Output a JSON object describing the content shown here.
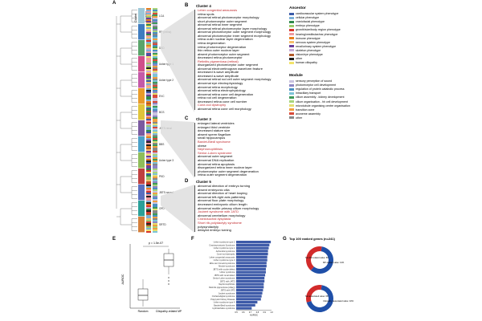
{
  "panel_letters": {
    "a": "A",
    "b": "B",
    "c": "C",
    "d": "D",
    "e": "E",
    "f": "F",
    "g": "G"
  },
  "tree_headers": {
    "cluster": "Cluster",
    "ancestor": "Ancestor",
    "module": "Module"
  },
  "clusters": [
    {
      "label": "LCA",
      "color": "#9ec8d8"
    },
    {
      "label": "RP (retina)",
      "color": "#3f7cbf"
    },
    {
      "label": "DSD",
      "color": "#5aa46a"
    },
    {
      "label": "Usher type 1",
      "color": "#d04f8a"
    },
    {
      "label": "Usher type 2",
      "color": "#c45aa8"
    },
    {
      "label": "EVC",
      "color": "#e89b2a"
    },
    {
      "label": "BCS",
      "color": "#e0c43a"
    },
    {
      "label": "JBTS renal",
      "color": "#7a5aa0"
    },
    {
      "label": "BBS",
      "color": "#4aa0c8"
    },
    {
      "label": "Usher type 3",
      "color": "#8fbd5a"
    },
    {
      "label": "PKD",
      "color": "#bf4040"
    },
    {
      "label": "JBTS neural",
      "color": "#5a6fbf"
    },
    {
      "label": "OFD",
      "color": "#2aa098"
    },
    {
      "label": "SRTD",
      "color": "#d47f3a"
    }
  ],
  "cluster4": {
    "title": "Cluster 4",
    "terms": [
      {
        "t": "Leber congenital amaurosis",
        "red": true
      },
      {
        "t": "retina spots",
        "red": false
      },
      {
        "t": "abnormal retinal photoreceptor morphology",
        "red": false
      },
      {
        "t": "short photoreceptor outer segment",
        "red": false
      },
      {
        "t": "abnormal retinal inner segment",
        "red": false
      },
      {
        "t": "abnormal retinal photoreceptor layer morphology",
        "red": false
      },
      {
        "t": "abnormal photoreceptor outer segment morphology",
        "red": false
      },
      {
        "t": "abnormal photoreceptor inner segment morphology",
        "red": false
      },
      {
        "t": "retina outer nuclear layer degeneration",
        "red": false
      },
      {
        "t": "retina degeneration",
        "red": false
      },
      {
        "t": "retina photoreceptor degeneration",
        "red": false
      },
      {
        "t": "thin retina outer nuclear layer",
        "red": false
      },
      {
        "t": "absent photoreceptor outer segment",
        "red": false
      },
      {
        "t": "decreased retina photoreceptor",
        "red": false
      },
      {
        "t": "Retinitis pigmentosa (retinal)",
        "red": true
      },
      {
        "t": "disorganized photoreceptor outer segment",
        "red": false
      },
      {
        "t": "abnormal electroretinogram waveform feature",
        "red": false
      },
      {
        "t": "decreased b-wave amplitude",
        "red": false
      },
      {
        "t": "decreased a-wave amplitude",
        "red": false
      },
      {
        "t": "abnormal retinal rod cell outer segment morphology",
        "red": false
      },
      {
        "t": "abnormal eye electrophysiology",
        "red": false
      },
      {
        "t": "abnormal retina morphology",
        "red": false
      },
      {
        "t": "abnormal retina electrophysiology",
        "red": false
      },
      {
        "t": "abnormal retina cone cell degeneration",
        "red": false
      },
      {
        "t": "retina rod cell degeneration",
        "red": false
      },
      {
        "t": "decreased retina cone cell number",
        "red": false
      },
      {
        "t": "Cone-rod dystrophy",
        "red": true
      },
      {
        "t": "abnormal retina cone cell morphology",
        "red": false
      }
    ]
  },
  "cluster3": {
    "title": "Cluster 3",
    "terms": [
      {
        "t": "enlarged lateral ventricles",
        "red": false
      },
      {
        "t": "enlarged third ventricle",
        "red": false
      },
      {
        "t": "decreased stature size",
        "red": false
      },
      {
        "t": "absent sperm flagellum",
        "red": false
      },
      {
        "t": "small hippocampus",
        "red": false
      },
      {
        "t": "Bardet-Biedl syndrome",
        "red": true
      },
      {
        "t": "obese",
        "red": false
      },
      {
        "t": "Nephronophthisis",
        "red": true
      },
      {
        "t": "Senior-Loken syndrome",
        "red": true
      },
      {
        "t": "abnormal outer segment",
        "red": false
      },
      {
        "t": "abnormal DNA replication",
        "red": false
      },
      {
        "t": "abnormal retina apoptosis",
        "red": false
      },
      {
        "t": "disorganized retina inner nuclear layer",
        "red": false
      },
      {
        "t": "photoreceptor outer segment degeneration",
        "red": false
      },
      {
        "t": "retina outer segment degeneration",
        "red": false
      }
    ]
  },
  "cluster5": {
    "title": "Cluster 5",
    "terms": [
      {
        "t": "abnormal direction of embryo turning",
        "red": false
      },
      {
        "t": "absent embryonic cilia",
        "red": false
      },
      {
        "t": "abnormal direction of heart looping",
        "red": false
      },
      {
        "t": "abnormal left-right axis patterning",
        "red": false
      },
      {
        "t": "abnormal floor plate morphology",
        "red": false
      },
      {
        "t": "decreased embryonic cilium length",
        "red": false
      },
      {
        "t": "abnormal motile primary cilium morphology",
        "red": false
      },
      {
        "t": "Joubert syndrome with JATD",
        "red": true
      },
      {
        "t": "abnormal cerebellum morphology",
        "red": false
      },
      {
        "t": "Craniosuchal dysplasia",
        "red": true
      },
      {
        "t": "Short rib-polydactyly syndrome",
        "red": true
      },
      {
        "t": "polysyndactyly",
        "red": false
      },
      {
        "t": "delayed embryo turning",
        "red": false
      }
    ]
  },
  "ancestor_legend": {
    "title": "Ancestor",
    "items": [
      {
        "label": "cardiovascular system phenotype",
        "color": "#3a5aa8"
      },
      {
        "label": "cellular phenotype",
        "color": "#7bb0d8"
      },
      {
        "label": "craniofacial phenotype",
        "color": "#2e8a4a"
      },
      {
        "label": "embryo phenotype",
        "color": "#9acb6a"
      },
      {
        "label": "growth/size/body region phenotype",
        "color": "#d8342c"
      },
      {
        "label": "hearing/vestibular/ear phenotype",
        "color": "#f09aa0"
      },
      {
        "label": "immune phenotype",
        "color": "#e87f1e"
      },
      {
        "label": "nervous system phenotype",
        "color": "#f6be6a"
      },
      {
        "label": "renal/urinary system phenotype",
        "color": "#6a3d9a"
      },
      {
        "label": "skeleton phenotype",
        "color": "#c6a8d6"
      },
      {
        "label": "vision/eye phenotype",
        "color": "#b15928"
      },
      {
        "label": "other",
        "color": "#222222"
      },
      {
        "label": "human ciliopathy",
        "color": "#f2e36a"
      }
    ]
  },
  "module_legend": {
    "title": "Module",
    "items": [
      {
        "label": "sensory perception of sound",
        "color": "#c9c3e0"
      },
      {
        "label": "photoreceptor cell development",
        "color": "#8e86c4"
      },
      {
        "label": "regulation of protein catabolic process",
        "color": "#4a90c2"
      },
      {
        "label": "intraciliary transport",
        "color": "#7dc4d8"
      },
      {
        "label": "cilium assembly - kidney development",
        "color": "#3e9a58"
      },
      {
        "label": "cilium organisation - hh cell development",
        "color": "#a8d57a"
      },
      {
        "label": "microtubule organising centre organisation",
        "color": "#e4df70"
      },
      {
        "label": "transition zone",
        "color": "#f0a040"
      },
      {
        "label": "axoneme assembly",
        "color": "#d84a3a"
      },
      {
        "label": "other",
        "color": "#888888"
      }
    ]
  },
  "panel_e": {
    "pvalue": "p = 1.5e-07",
    "ylabel": "AUROC",
    "categories": [
      "Random",
      "Ciliopathy-related MP"
    ]
  },
  "panel_f": {
    "xlabel": "AUROC",
    "ticks": [
      "0.5",
      "0.6",
      "0.7",
      "0.8",
      "0.9",
      "1.0"
    ],
    "chart_data": {
      "type": "bar",
      "categories": [
        "Usher syndrome type 2",
        "Craniosynostosis Syndrome",
        "Usher syndrome type 1",
        "Achondral syndrome",
        "Cone-rod dystrophy",
        "Leber congenital amaurosis",
        "Usher syndrome type 3",
        "Ellis-van Creveld syndrome",
        "Meckel syndrome",
        "JBTS with ocular defect",
        "Usher syndrome",
        "JBTS with renal defect",
        "Senior-Loken syndrome",
        "JBTS with JATD",
        "Nephronophthisis",
        "Retinitis pigmentosa (ciliary)",
        "JBTS with OFD",
        "Joubert syndrome",
        "Orofaciodigital syndrome",
        "Polycystic Kidney Disease",
        "Usher syndrome type 4",
        "Bardet-Biedl syndrome",
        "Hydrolethalus syndrome"
      ],
      "values": [
        0.99,
        0.97,
        0.96,
        0.95,
        0.95,
        0.94,
        0.94,
        0.93,
        0.93,
        0.92,
        0.92,
        0.91,
        0.9,
        0.9,
        0.89,
        0.89,
        0.88,
        0.87,
        0.86,
        0.85,
        0.8,
        0.77,
        0.72
      ],
      "xlim": [
        0.5,
        1.0
      ]
    }
  },
  "panel_g": {
    "title": "Top 100 ranked genes (n=241)",
    "chart_data": [
      {
        "type": "pie",
        "categories": [
          "Not MP-related",
          "MP-related"
        ],
        "values": [
          59,
          41
        ],
        "labels": [
          "Not MP-related value: 59",
          "MP-related value: 41%"
        ]
      },
      {
        "type": "pie",
        "categories": [
          "Not associated",
          "Ciliopathy associated"
        ],
        "values": [
          68,
          32
        ],
        "labels": [
          "Not associated value: 68",
          "Ciliopathy associated value: 32%"
        ]
      }
    ]
  }
}
